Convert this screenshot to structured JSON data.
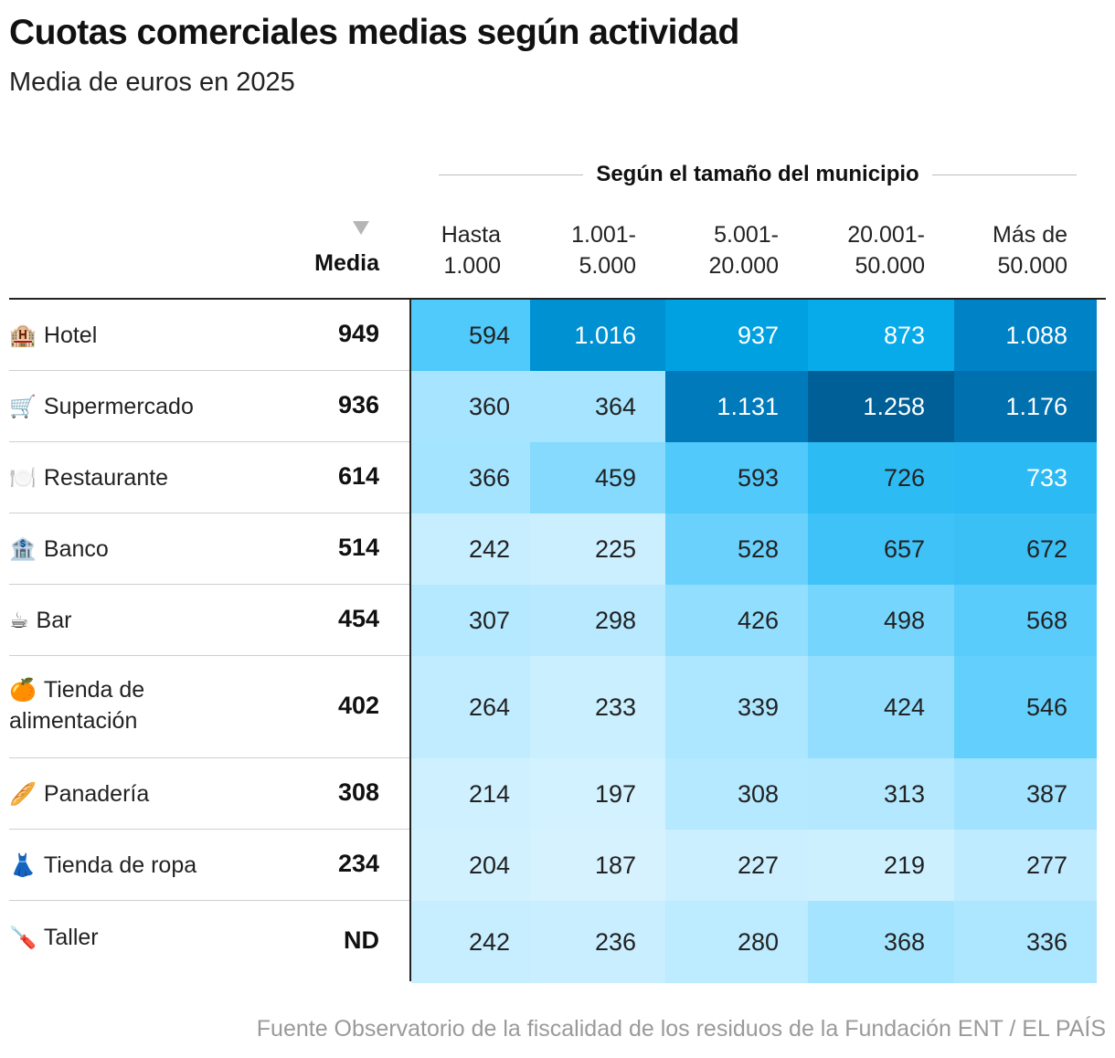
{
  "chart_data": {
    "type": "heatmap",
    "title": "Cuotas comerciales medias según actividad",
    "subtitle": "Media de euros en 2025",
    "group_header": "Según el tamaño del municipio",
    "media_header": "Media",
    "columns": [
      {
        "line1": "Hasta",
        "line2": "1.000"
      },
      {
        "line1": "1.001-",
        "line2": "5.000"
      },
      {
        "line1": "5.001-",
        "line2": "20.000"
      },
      {
        "line1": "20.001-",
        "line2": "50.000"
      },
      {
        "line1": "Más de",
        "line2": "50.000"
      }
    ],
    "rows": [
      {
        "icon": "🏨",
        "icon_name": "hotel-icon",
        "label": "Hotel",
        "media": "949",
        "values": [
          594,
          1016,
          937,
          873,
          1088
        ],
        "display": [
          "594",
          "1.016",
          "937",
          "873",
          "1.088"
        ]
      },
      {
        "icon": "🛒",
        "icon_name": "shopping-cart-icon",
        "label": "Supermercado",
        "media": "936",
        "values": [
          360,
          364,
          1131,
          1258,
          1176
        ],
        "display": [
          "360",
          "364",
          "1.131",
          "1.258",
          "1.176"
        ]
      },
      {
        "icon": "🍽️",
        "icon_name": "plate-icon",
        "label": "Restaurante",
        "media": "614",
        "values": [
          366,
          459,
          593,
          726,
          733
        ],
        "display": [
          "366",
          "459",
          "593",
          "726",
          "733"
        ]
      },
      {
        "icon": "🏦",
        "icon_name": "bank-icon",
        "label": "Banco",
        "media": "514",
        "values": [
          242,
          225,
          528,
          657,
          672
        ],
        "display": [
          "242",
          "225",
          "528",
          "657",
          "672"
        ]
      },
      {
        "icon": "☕",
        "icon_name": "coffee-icon",
        "label": "Bar",
        "media": "454",
        "values": [
          307,
          298,
          426,
          498,
          568
        ],
        "display": [
          "307",
          "298",
          "426",
          "498",
          "568"
        ]
      },
      {
        "icon": "🍊",
        "icon_name": "orange-icon",
        "label": "Tienda de alimentación",
        "label_line1": "Tienda de",
        "label_line2": "alimentación",
        "media": "402",
        "values": [
          264,
          233,
          339,
          424,
          546
        ],
        "display": [
          "264",
          "233",
          "339",
          "424",
          "546"
        ]
      },
      {
        "icon": "🥖",
        "icon_name": "baguette-icon",
        "label": "Panadería",
        "media": "308",
        "values": [
          214,
          197,
          308,
          313,
          387
        ],
        "display": [
          "214",
          "197",
          "308",
          "313",
          "387"
        ]
      },
      {
        "icon": "👗",
        "icon_name": "dress-icon",
        "label": "Tienda de ropa",
        "media": "234",
        "values": [
          204,
          187,
          227,
          219,
          277
        ],
        "display": [
          "204",
          "187",
          "227",
          "219",
          "277"
        ]
      },
      {
        "icon": "🪛",
        "icon_name": "screwdriver-icon",
        "label": "Taller",
        "media": "ND",
        "values": [
          242,
          236,
          280,
          368,
          336
        ],
        "display": [
          "242",
          "236",
          "280",
          "368",
          "336"
        ]
      }
    ],
    "color_scale": {
      "low": "#d8f3ff",
      "mid": "#4ec8fb",
      "high": "#005f96"
    },
    "source": "Fuente Observatorio de la fiscalidad de los residuos de la Fundación ENT / EL PAÍS"
  }
}
